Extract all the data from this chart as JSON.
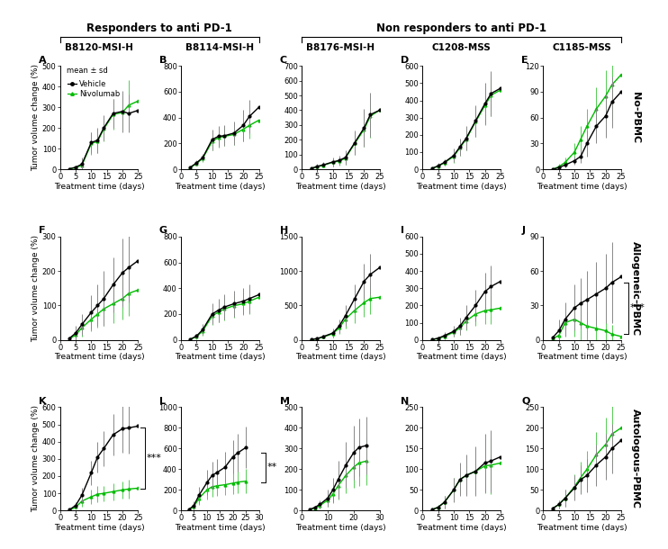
{
  "title_responders": "Responders to anti PD-1",
  "title_nonresponders": "Non responders to anti PD-1",
  "row_labels": [
    "No-PBMC",
    "Allogeneic-PBMC",
    "Autologous-PBMC"
  ],
  "col_labels": [
    "B8120-MSI-H",
    "B8114-MSI-H",
    "B8176-MSI-H",
    "C1208-MSS",
    "C1185-MSS"
  ],
  "vehicle_color": "#000000",
  "nivo_color": "#00bb00",
  "err_vehicle_color": "#888888",
  "err_nivo_color": "#55cc55",
  "panels": {
    "A": {
      "xlim": [
        0,
        25
      ],
      "ylim": [
        0,
        500
      ],
      "xticks": [
        0,
        5,
        10,
        15,
        20,
        25
      ],
      "yticks": [
        0,
        100,
        200,
        300,
        400,
        500
      ],
      "vehicle_x": [
        3,
        5,
        7,
        10,
        12,
        14,
        17,
        20,
        22,
        25
      ],
      "vehicle_y": [
        2,
        10,
        25,
        130,
        140,
        200,
        270,
        280,
        270,
        285
      ],
      "vehicle_err": [
        3,
        10,
        30,
        50,
        60,
        60,
        70,
        100,
        90,
        120
      ],
      "nivo_x": [
        3,
        5,
        7,
        10,
        12,
        14,
        17,
        20,
        22,
        25
      ],
      "nivo_y": [
        2,
        8,
        20,
        125,
        135,
        195,
        265,
        275,
        310,
        330
      ],
      "nivo_err": [
        3,
        8,
        25,
        55,
        55,
        60,
        75,
        80,
        120,
        100
      ],
      "show_legend": true,
      "significance": null
    },
    "B": {
      "xlim": [
        0,
        25
      ],
      "ylim": [
        0,
        800
      ],
      "xticks": [
        0,
        5,
        10,
        15,
        20,
        25
      ],
      "yticks": [
        0,
        200,
        400,
        600,
        800
      ],
      "vehicle_x": [
        3,
        5,
        7,
        10,
        12,
        14,
        17,
        20,
        22,
        25
      ],
      "vehicle_y": [
        15,
        50,
        90,
        230,
        255,
        260,
        280,
        340,
        410,
        480
      ],
      "vehicle_err": [
        10,
        20,
        30,
        80,
        80,
        80,
        90,
        120,
        130,
        180
      ],
      "nivo_x": [
        3,
        5,
        7,
        10,
        12,
        14,
        17,
        20,
        22,
        25
      ],
      "nivo_y": [
        12,
        45,
        85,
        215,
        245,
        255,
        270,
        310,
        340,
        380
      ],
      "nivo_err": [
        8,
        18,
        28,
        70,
        75,
        70,
        80,
        90,
        100,
        100
      ],
      "show_legend": false,
      "significance": null
    },
    "C": {
      "xlim": [
        0,
        25
      ],
      "ylim": [
        0,
        700
      ],
      "xticks": [
        0,
        5,
        10,
        15,
        20,
        25
      ],
      "yticks": [
        0,
        100,
        200,
        300,
        400,
        500,
        600,
        700
      ],
      "vehicle_x": [
        3,
        5,
        7,
        10,
        12,
        14,
        17,
        20,
        22,
        25
      ],
      "vehicle_y": [
        5,
        20,
        30,
        50,
        60,
        80,
        180,
        280,
        370,
        400
      ],
      "vehicle_err": [
        5,
        15,
        20,
        30,
        30,
        50,
        80,
        130,
        150,
        150
      ],
      "nivo_x": [
        3,
        5,
        7,
        10,
        12,
        14,
        17,
        20,
        22,
        25
      ],
      "nivo_y": [
        5,
        18,
        28,
        48,
        55,
        75,
        175,
        270,
        360,
        400
      ],
      "nivo_err": [
        5,
        12,
        18,
        28,
        28,
        45,
        75,
        120,
        145,
        160
      ],
      "show_legend": false,
      "significance": null
    },
    "D": {
      "xlim": [
        0,
        25
      ],
      "ylim": [
        0,
        600
      ],
      "xticks": [
        0,
        5,
        10,
        15,
        20,
        25
      ],
      "yticks": [
        0,
        100,
        200,
        300,
        400,
        500,
        600
      ],
      "vehicle_x": [
        3,
        5,
        7,
        10,
        12,
        14,
        17,
        20,
        22,
        25
      ],
      "vehicle_y": [
        5,
        20,
        40,
        80,
        130,
        180,
        280,
        380,
        440,
        470
      ],
      "vehicle_err": [
        5,
        15,
        20,
        40,
        50,
        70,
        90,
        120,
        130,
        130
      ],
      "nivo_x": [
        3,
        5,
        7,
        10,
        12,
        14,
        17,
        20,
        22,
        25
      ],
      "nivo_y": [
        4,
        18,
        38,
        75,
        125,
        175,
        275,
        370,
        430,
        460
      ],
      "nivo_err": [
        4,
        12,
        18,
        38,
        48,
        65,
        85,
        115,
        120,
        125
      ],
      "show_legend": false,
      "significance": null
    },
    "E": {
      "xlim": [
        0,
        25
      ],
      "ylim": [
        0,
        120
      ],
      "xticks": [
        0,
        5,
        10,
        15,
        20,
        25
      ],
      "yticks": [
        0,
        30,
        60,
        90,
        120
      ],
      "vehicle_x": [
        3,
        5,
        7,
        10,
        12,
        14,
        17,
        20,
        22,
        25
      ],
      "vehicle_y": [
        0,
        2,
        5,
        10,
        15,
        30,
        50,
        62,
        78,
        90
      ],
      "vehicle_err": [
        0,
        2,
        3,
        5,
        8,
        15,
        20,
        25,
        30,
        35
      ],
      "nivo_x": [
        3,
        5,
        7,
        10,
        12,
        14,
        17,
        20,
        22,
        25
      ],
      "nivo_y": [
        0,
        3,
        8,
        20,
        35,
        50,
        70,
        85,
        98,
        110
      ],
      "nivo_err": [
        0,
        3,
        6,
        10,
        15,
        20,
        25,
        30,
        40,
        50
      ],
      "show_legend": false,
      "significance": null
    },
    "F": {
      "xlim": [
        0,
        25
      ],
      "ylim": [
        0,
        300
      ],
      "xticks": [
        0,
        5,
        10,
        15,
        20,
        25
      ],
      "yticks": [
        0,
        100,
        200,
        300
      ],
      "vehicle_x": [
        3,
        5,
        7,
        10,
        12,
        14,
        17,
        20,
        22,
        25
      ],
      "vehicle_y": [
        5,
        20,
        45,
        80,
        100,
        120,
        160,
        195,
        210,
        230
      ],
      "vehicle_err": [
        5,
        20,
        30,
        50,
        60,
        80,
        80,
        100,
        100,
        110
      ],
      "nivo_x": [
        3,
        5,
        7,
        10,
        12,
        14,
        17,
        20,
        22,
        25
      ],
      "nivo_y": [
        3,
        15,
        35,
        60,
        75,
        90,
        105,
        120,
        135,
        145
      ],
      "nivo_err": [
        3,
        15,
        25,
        35,
        40,
        50,
        55,
        60,
        65,
        70
      ],
      "show_legend": false,
      "significance": null
    },
    "G": {
      "xlim": [
        0,
        25
      ],
      "ylim": [
        0,
        800
      ],
      "xticks": [
        0,
        5,
        10,
        15,
        20,
        25
      ],
      "yticks": [
        0,
        200,
        400,
        600,
        800
      ],
      "vehicle_x": [
        3,
        5,
        7,
        10,
        12,
        14,
        17,
        20,
        22,
        25
      ],
      "vehicle_y": [
        5,
        30,
        80,
        200,
        230,
        255,
        280,
        300,
        320,
        350
      ],
      "vehicle_err": [
        5,
        20,
        40,
        80,
        90,
        100,
        100,
        100,
        110,
        120
      ],
      "nivo_x": [
        3,
        5,
        7,
        10,
        12,
        14,
        17,
        20,
        22,
        25
      ],
      "nivo_y": [
        5,
        25,
        70,
        185,
        215,
        240,
        265,
        280,
        300,
        330
      ],
      "nivo_err": [
        5,
        18,
        35,
        70,
        80,
        90,
        90,
        90,
        100,
        110
      ],
      "show_legend": false,
      "significance": null
    },
    "H": {
      "xlim": [
        0,
        25
      ],
      "ylim": [
        0,
        1500
      ],
      "xticks": [
        0,
        5,
        10,
        15,
        20,
        25
      ],
      "yticks": [
        0,
        500,
        1000,
        1500
      ],
      "vehicle_x": [
        3,
        5,
        7,
        10,
        12,
        14,
        17,
        20,
        22,
        25
      ],
      "vehicle_y": [
        5,
        20,
        50,
        100,
        200,
        350,
        600,
        850,
        950,
        1050
      ],
      "vehicle_err": [
        5,
        15,
        30,
        60,
        100,
        150,
        200,
        250,
        300,
        350
      ],
      "nivo_x": [
        3,
        5,
        7,
        10,
        12,
        14,
        17,
        20,
        22,
        25
      ],
      "nivo_y": [
        5,
        18,
        45,
        90,
        175,
        300,
        430,
        540,
        600,
        620
      ],
      "nivo_err": [
        5,
        12,
        25,
        50,
        90,
        130,
        180,
        200,
        230,
        250
      ],
      "show_legend": false,
      "significance": null
    },
    "I": {
      "xlim": [
        0,
        25
      ],
      "ylim": [
        0,
        600
      ],
      "xticks": [
        0,
        5,
        10,
        15,
        20,
        25
      ],
      "yticks": [
        0,
        100,
        200,
        300,
        400,
        500,
        600
      ],
      "vehicle_x": [
        3,
        5,
        7,
        10,
        12,
        14,
        17,
        20,
        22,
        25
      ],
      "vehicle_y": [
        2,
        10,
        25,
        50,
        80,
        130,
        200,
        280,
        310,
        340
      ],
      "vehicle_err": [
        2,
        8,
        20,
        30,
        50,
        70,
        90,
        110,
        120,
        130
      ],
      "nivo_x": [
        3,
        5,
        7,
        10,
        12,
        14,
        17,
        20,
        22,
        25
      ],
      "nivo_y": [
        2,
        8,
        20,
        45,
        70,
        110,
        150,
        170,
        175,
        185
      ],
      "nivo_err": [
        2,
        6,
        15,
        25,
        40,
        55,
        70,
        80,
        80,
        80
      ],
      "show_legend": false,
      "significance": null
    },
    "J": {
      "xlim": [
        0,
        25
      ],
      "ylim": [
        0,
        90
      ],
      "xticks": [
        0,
        5,
        10,
        15,
        20,
        25
      ],
      "yticks": [
        0,
        30,
        60,
        90
      ],
      "vehicle_x": [
        3,
        5,
        7,
        10,
        12,
        14,
        17,
        20,
        22,
        25
      ],
      "vehicle_y": [
        2,
        8,
        18,
        28,
        32,
        35,
        40,
        45,
        50,
        55
      ],
      "vehicle_err": [
        2,
        10,
        15,
        20,
        22,
        25,
        28,
        30,
        35,
        40
      ],
      "nivo_x": [
        3,
        5,
        7,
        10,
        12,
        14,
        17,
        20,
        22,
        25
      ],
      "nivo_y": [
        1,
        4,
        15,
        18,
        15,
        12,
        10,
        8,
        5,
        3
      ],
      "nivo_err": [
        1,
        4,
        10,
        15,
        15,
        12,
        12,
        10,
        8,
        6
      ],
      "show_legend": false,
      "significance": "***"
    },
    "K": {
      "xlim": [
        0,
        25
      ],
      "ylim": [
        0,
        600
      ],
      "xticks": [
        0,
        5,
        10,
        15,
        20,
        25
      ],
      "yticks": [
        0,
        100,
        200,
        300,
        400,
        500,
        600
      ],
      "vehicle_x": [
        3,
        5,
        7,
        10,
        12,
        14,
        17,
        20,
        22,
        25
      ],
      "vehicle_y": [
        5,
        30,
        90,
        220,
        310,
        360,
        440,
        475,
        480,
        490
      ],
      "vehicle_err": [
        5,
        20,
        40,
        70,
        90,
        100,
        120,
        140,
        150,
        150
      ],
      "nivo_x": [
        3,
        5,
        7,
        10,
        12,
        14,
        17,
        20,
        22,
        25
      ],
      "nivo_y": [
        3,
        20,
        55,
        80,
        95,
        100,
        110,
        120,
        125,
        130
      ],
      "nivo_err": [
        3,
        15,
        30,
        40,
        45,
        45,
        50,
        50,
        55,
        55
      ],
      "show_legend": false,
      "significance": "***"
    },
    "L": {
      "xlim": [
        0,
        30
      ],
      "ylim": [
        0,
        1000
      ],
      "xticks": [
        0,
        5,
        10,
        15,
        20,
        25,
        30
      ],
      "yticks": [
        0,
        200,
        400,
        600,
        800,
        1000
      ],
      "vehicle_x": [
        3,
        5,
        7,
        10,
        12,
        14,
        17,
        20,
        22,
        25
      ],
      "vehicle_y": [
        10,
        50,
        150,
        270,
        340,
        370,
        420,
        520,
        560,
        610
      ],
      "vehicle_err": [
        10,
        40,
        80,
        120,
        130,
        130,
        150,
        160,
        180,
        200
      ],
      "nivo_x": [
        3,
        5,
        7,
        10,
        12,
        14,
        17,
        20,
        22,
        25
      ],
      "nivo_y": [
        8,
        40,
        120,
        200,
        230,
        240,
        250,
        265,
        275,
        285
      ],
      "nivo_err": [
        8,
        35,
        65,
        90,
        95,
        95,
        100,
        105,
        110,
        115
      ],
      "show_legend": false,
      "significance": "**"
    },
    "M": {
      "xlim": [
        0,
        30
      ],
      "ylim": [
        0,
        500
      ],
      "xticks": [
        0,
        10,
        20,
        30
      ],
      "yticks": [
        0,
        100,
        200,
        300,
        400,
        500
      ],
      "vehicle_x": [
        3,
        5,
        7,
        10,
        12,
        14,
        17,
        20,
        22,
        25
      ],
      "vehicle_y": [
        5,
        15,
        30,
        60,
        100,
        150,
        220,
        280,
        305,
        315
      ],
      "vehicle_err": [
        5,
        10,
        20,
        40,
        60,
        90,
        110,
        130,
        140,
        140
      ],
      "nivo_x": [
        3,
        5,
        7,
        10,
        12,
        14,
        17,
        20,
        22,
        25
      ],
      "nivo_y": [
        4,
        12,
        25,
        50,
        80,
        120,
        170,
        210,
        230,
        240
      ],
      "nivo_err": [
        4,
        8,
        15,
        30,
        45,
        65,
        85,
        100,
        110,
        115
      ],
      "show_legend": false,
      "significance": null
    },
    "N": {
      "xlim": [
        0,
        25
      ],
      "ylim": [
        0,
        250
      ],
      "xticks": [
        0,
        5,
        10,
        15,
        20,
        25
      ],
      "yticks": [
        0,
        50,
        100,
        150,
        200,
        250
      ],
      "vehicle_x": [
        3,
        5,
        7,
        10,
        12,
        14,
        17,
        20,
        22,
        25
      ],
      "vehicle_y": [
        2,
        8,
        20,
        50,
        75,
        85,
        95,
        115,
        120,
        130
      ],
      "vehicle_err": [
        2,
        6,
        15,
        30,
        40,
        50,
        60,
        70,
        75,
        80
      ],
      "nivo_x": [
        3,
        5,
        7,
        10,
        12,
        14,
        17,
        20,
        22,
        25
      ],
      "nivo_y": [
        2,
        8,
        20,
        50,
        75,
        85,
        95,
        108,
        110,
        115
      ],
      "nivo_err": [
        2,
        6,
        15,
        28,
        38,
        48,
        55,
        65,
        70,
        75
      ],
      "show_legend": false,
      "significance": null
    },
    "O": {
      "xlim": [
        0,
        25
      ],
      "ylim": [
        0,
        250
      ],
      "xticks": [
        0,
        5,
        10,
        15,
        20,
        25
      ],
      "yticks": [
        0,
        50,
        100,
        150,
        200,
        250
      ],
      "vehicle_x": [
        3,
        5,
        7,
        10,
        12,
        14,
        17,
        20,
        22,
        25
      ],
      "vehicle_y": [
        5,
        15,
        30,
        55,
        75,
        85,
        110,
        130,
        150,
        170
      ],
      "vehicle_err": [
        4,
        10,
        20,
        30,
        35,
        40,
        50,
        55,
        60,
        65
      ],
      "nivo_x": [
        3,
        5,
        7,
        10,
        12,
        14,
        17,
        20,
        22,
        25
      ],
      "nivo_y": [
        5,
        15,
        30,
        58,
        80,
        100,
        135,
        160,
        185,
        200
      ],
      "nivo_err": [
        4,
        10,
        20,
        30,
        38,
        45,
        55,
        65,
        75,
        80
      ],
      "show_legend": false,
      "significance": null
    }
  },
  "background_color": "#ffffff",
  "fontsize_panel_label": 8,
  "fontsize_tick": 6,
  "fontsize_axis_label": 6.5,
  "fontsize_legend": 6.5,
  "fontsize_col_label": 7.5,
  "fontsize_row_label": 8,
  "fontsize_sig": 8,
  "fontsize_group_title": 8.5
}
